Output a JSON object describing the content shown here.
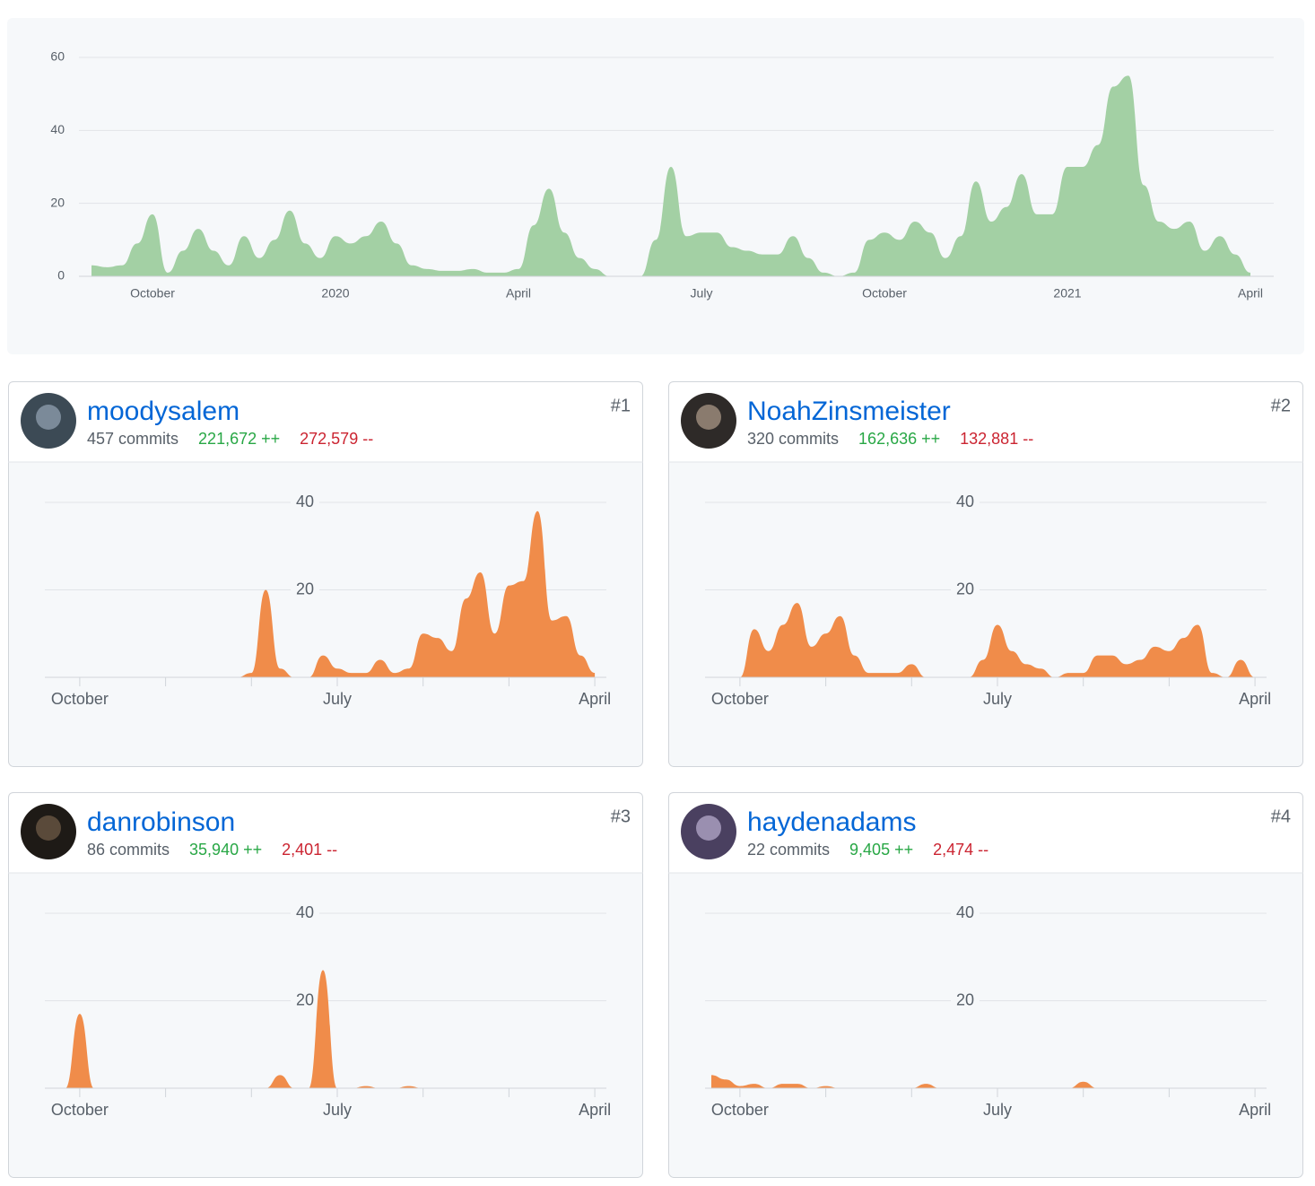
{
  "chart_data": [
    {
      "type": "area",
      "color": "#a3d0a4",
      "categories": [
        null,
        null,
        null,
        null,
        "October",
        null,
        null,
        null,
        null,
        null,
        null,
        null,
        null,
        null,
        null,
        null,
        "2020",
        null,
        null,
        null,
        null,
        null,
        null,
        null,
        null,
        null,
        null,
        null,
        "April",
        null,
        null,
        null,
        null,
        null,
        null,
        null,
        null,
        null,
        null,
        null,
        "July",
        null,
        null,
        null,
        null,
        null,
        null,
        null,
        null,
        null,
        null,
        null,
        "October",
        null,
        null,
        null,
        null,
        null,
        null,
        null,
        null,
        null,
        null,
        null,
        "2021",
        null,
        null,
        null,
        null,
        null,
        null,
        null,
        null,
        null,
        null,
        null,
        "April"
      ],
      "values": [
        3,
        2.5,
        3,
        9,
        17,
        1,
        7,
        13,
        7,
        3,
        11,
        5,
        10,
        18,
        9,
        5,
        11,
        9,
        11,
        15,
        9,
        3,
        2,
        1.5,
        1.5,
        2,
        1,
        1,
        2,
        14,
        24,
        12,
        5,
        2,
        0,
        0,
        0,
        10,
        30,
        11,
        12,
        12,
        8,
        7,
        6,
        6,
        11,
        5,
        1,
        0,
        1,
        10,
        12,
        10,
        15,
        12,
        5,
        11,
        26,
        15,
        19,
        28,
        17,
        17,
        30,
        30,
        36,
        52,
        55,
        25,
        15,
        13,
        15,
        7,
        11,
        6,
        1
      ],
      "ylim": [
        0,
        60
      ],
      "yticks": [
        0,
        20,
        40,
        60
      ],
      "grid": true
    },
    {
      "type": "area",
      "color": "#f08c4a",
      "categories": [
        null,
        null,
        "October",
        null,
        null,
        null,
        null,
        null,
        null,
        null,
        null,
        null,
        null,
        null,
        null,
        null,
        null,
        null,
        null,
        null,
        "July",
        null,
        null,
        null,
        null,
        null,
        null,
        null,
        null,
        null,
        null,
        null,
        null,
        null,
        null,
        null,
        null,
        null,
        "April"
      ],
      "values": [
        0,
        0,
        0,
        0,
        0,
        0,
        0,
        0,
        0,
        0,
        0,
        0,
        0,
        0,
        1,
        20,
        2,
        0,
        0,
        5,
        2,
        1,
        1,
        4,
        1,
        2,
        10,
        9,
        6,
        18,
        24,
        10,
        21,
        22,
        38,
        13,
        14,
        5,
        1
      ],
      "ylim": [
        0,
        40
      ],
      "yticks": [
        20,
        40
      ],
      "grid": true
    },
    {
      "type": "area",
      "color": "#f08c4a",
      "categories": [
        null,
        null,
        "October",
        null,
        null,
        null,
        null,
        null,
        null,
        null,
        null,
        null,
        null,
        null,
        null,
        null,
        null,
        null,
        null,
        null,
        "July",
        null,
        null,
        null,
        null,
        null,
        null,
        null,
        null,
        null,
        null,
        null,
        null,
        null,
        null,
        null,
        null,
        null,
        "April"
      ],
      "values": [
        0,
        0,
        0,
        11,
        6,
        12,
        17,
        7,
        10,
        14,
        5,
        1,
        1,
        1,
        3,
        0,
        0,
        0,
        0,
        4,
        12,
        6,
        3,
        2,
        0,
        1,
        1,
        5,
        5,
        3,
        4,
        7,
        6,
        9,
        12,
        1,
        0,
        4,
        0
      ],
      "ylim": [
        0,
        40
      ],
      "yticks": [
        20,
        40
      ],
      "grid": true
    },
    {
      "type": "area",
      "color": "#f08c4a",
      "categories": [
        null,
        null,
        "October",
        null,
        null,
        null,
        null,
        null,
        null,
        null,
        null,
        null,
        null,
        null,
        null,
        null,
        null,
        null,
        null,
        null,
        "July",
        null,
        null,
        null,
        null,
        null,
        null,
        null,
        null,
        null,
        null,
        null,
        null,
        null,
        null,
        null,
        null,
        null,
        "April"
      ],
      "values": [
        0,
        0,
        17,
        0,
        0,
        0,
        0,
        0,
        0,
        0,
        0,
        0,
        0,
        0,
        0,
        0,
        3,
        0,
        0,
        27,
        0,
        0,
        0.5,
        0,
        0,
        0.5,
        0,
        0,
        0,
        0,
        0,
        0,
        0,
        0,
        0,
        0,
        0,
        0,
        0
      ],
      "ylim": [
        0,
        40
      ],
      "yticks": [
        20,
        40
      ],
      "grid": true
    },
    {
      "type": "area",
      "color": "#f08c4a",
      "categories": [
        null,
        null,
        "October",
        null,
        null,
        null,
        null,
        null,
        null,
        null,
        null,
        null,
        null,
        null,
        null,
        null,
        null,
        null,
        null,
        null,
        "July",
        null,
        null,
        null,
        null,
        null,
        null,
        null,
        null,
        null,
        null,
        null,
        null,
        null,
        null,
        null,
        null,
        null,
        "April"
      ],
      "values": [
        3,
        2,
        0.5,
        1,
        0,
        1,
        1,
        0,
        0.5,
        0,
        0,
        0,
        0,
        0,
        0,
        1,
        0,
        0,
        0,
        0,
        0,
        0,
        0,
        0,
        0,
        0,
        1.5,
        0,
        0,
        0,
        0,
        0,
        0,
        0,
        0,
        0,
        0,
        0,
        0
      ],
      "ylim": [
        0,
        40
      ],
      "yticks": [
        20,
        40
      ],
      "grid": true
    }
  ],
  "contributors": [
    {
      "name": "moodysalem",
      "commits": "457 commits",
      "additions": "221,672 ++",
      "deletions": "272,579 --",
      "rank": "#1"
    },
    {
      "name": "NoahZinsmeister",
      "commits": "320 commits",
      "additions": "162,636 ++",
      "deletions": "132,881 --",
      "rank": "#2"
    },
    {
      "name": "danrobinson",
      "commits": "86 commits",
      "additions": "35,940 ++",
      "deletions": "2,401 --",
      "rank": "#3"
    },
    {
      "name": "haydenadams",
      "commits": "22 commits",
      "additions": "9,405 ++",
      "deletions": "2,474 --",
      "rank": "#4"
    }
  ]
}
